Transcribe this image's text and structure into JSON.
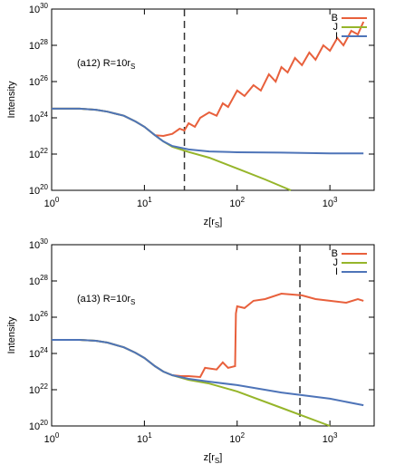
{
  "chart_data": [
    {
      "type": "line",
      "xscale": "log",
      "yscale": "log",
      "annotation": {
        "text": "(a12)  R=10r",
        "sub": "S"
      },
      "ylabel": "Intensity",
      "xlabel": {
        "text": "z[r",
        "sub": "S",
        "end": "]"
      },
      "xlim": [
        1,
        3000
      ],
      "ylim": [
        1e+20,
        1e+30
      ],
      "xticks": [
        {
          "value": 1,
          "label": "10",
          "exponent": "0"
        },
        {
          "value": 10,
          "label": "10",
          "exponent": "1"
        },
        {
          "value": 100,
          "label": "10",
          "exponent": "2"
        },
        {
          "value": 1000,
          "label": "10",
          "exponent": "3"
        }
      ],
      "yticks": [
        {
          "value": 1e+20,
          "label": "10",
          "exponent": "20"
        },
        {
          "value": 1e+22,
          "label": "10",
          "exponent": "22"
        },
        {
          "value": 1e+24,
          "label": "10",
          "exponent": "24"
        },
        {
          "value": 1e+26,
          "label": "10",
          "exponent": "26"
        },
        {
          "value": 1e+28,
          "label": "10",
          "exponent": "28"
        },
        {
          "value": 1e+30,
          "label": "10",
          "exponent": "30"
        }
      ],
      "vline": 27,
      "legend": "upper right",
      "series": [
        {
          "name": "B",
          "color": "#e8603c",
          "x": [
            1,
            2,
            3,
            4,
            6,
            8,
            10,
            13,
            16,
            20,
            24,
            27,
            30,
            35,
            40,
            50,
            60,
            70,
            80,
            100,
            120,
            150,
            180,
            220,
            260,
            300,
            350,
            420,
            500,
            600,
            700,
            850,
            1000,
            1200,
            1400,
            1700,
            2000,
            2300
          ],
          "values": [
            3.2e+24,
            3.2e+24,
            2.8e+24,
            2.2e+24,
            1.3e+24,
            6.3e+23,
            3.2e+23,
            1.1e+23,
            1e+23,
            1.3e+23,
            2.5e+23,
            2e+23,
            5e+23,
            3.2e+23,
            1e+24,
            2e+24,
            1.3e+24,
            6.3e+24,
            4e+24,
            3.2e+25,
            1.6e+25,
            6.3e+25,
            3.2e+25,
            2.5e+26,
            1e+26,
            6.3e+26,
            3.2e+26,
            2e+27,
            8e+26,
            4e+27,
            1.6e+27,
            1e+28,
            5e+27,
            2.5e+28,
            1e+28,
            6.3e+28,
            4e+28,
            2e+29
          ]
        },
        {
          "name": "J",
          "color": "#96b52a",
          "x": [
            1,
            2,
            3,
            4,
            6,
            8,
            10,
            13,
            16,
            20,
            30,
            50,
            100,
            200,
            380
          ],
          "values": [
            3.2e+24,
            3.2e+24,
            2.8e+24,
            2.2e+24,
            1.3e+24,
            6.3e+23,
            3.2e+23,
            1.1e+23,
            5e+22,
            2.5e+22,
            1.3e+22,
            6.3e+21,
            1.6e+21,
            4e+20,
            1e+20
          ]
        },
        {
          "name": "I",
          "color": "#4e74b8",
          "x": [
            1,
            2,
            3,
            4,
            6,
            8,
            10,
            13,
            16,
            20,
            30,
            50,
            100,
            300,
            1000,
            2300
          ],
          "values": [
            3.2e+24,
            3.2e+24,
            2.8e+24,
            2.2e+24,
            1.3e+24,
            6.3e+23,
            3.2e+23,
            1.1e+23,
            5e+22,
            2.8e+22,
            1.8e+22,
            1.4e+22,
            1.26e+22,
            1.2e+22,
            1.1e+22,
            1.1e+22
          ]
        }
      ]
    },
    {
      "type": "line",
      "xscale": "log",
      "yscale": "log",
      "annotation": {
        "text": "(a13)  R=10r",
        "sub": "S"
      },
      "ylabel": "Intensity",
      "xlabel": {
        "text": "z[r",
        "sub": "S",
        "end": "]"
      },
      "xlim": [
        1,
        3000
      ],
      "ylim": [
        1e+20,
        1e+30
      ],
      "xticks": [
        {
          "value": 1,
          "label": "10",
          "exponent": "0"
        },
        {
          "value": 10,
          "label": "10",
          "exponent": "1"
        },
        {
          "value": 100,
          "label": "10",
          "exponent": "2"
        },
        {
          "value": 1000,
          "label": "10",
          "exponent": "3"
        }
      ],
      "yticks": [
        {
          "value": 1e+20,
          "label": "10",
          "exponent": "20"
        },
        {
          "value": 1e+22,
          "label": "10",
          "exponent": "22"
        },
        {
          "value": 1e+24,
          "label": "10",
          "exponent": "24"
        },
        {
          "value": 1e+26,
          "label": "10",
          "exponent": "26"
        },
        {
          "value": 1e+28,
          "label": "10",
          "exponent": "28"
        },
        {
          "value": 1e+30,
          "label": "10",
          "exponent": "30"
        }
      ],
      "vline": 475,
      "legend": "upper right",
      "series": [
        {
          "name": "B",
          "color": "#e8603c",
          "x": [
            1,
            2,
            3,
            4,
            6,
            8,
            10,
            13,
            16,
            20,
            25,
            30,
            40,
            45,
            60,
            70,
            80,
            95,
            97,
            100,
            120,
            150,
            200,
            300,
            500,
            700,
            1000,
            1500,
            2000,
            2300
          ],
          "values": [
            5.6e+24,
            5.6e+24,
            5e+24,
            4e+24,
            2.2e+24,
            1.1e+24,
            5.6e+23,
            2e+23,
            1e+23,
            6.3e+22,
            5.6e+22,
            5.6e+22,
            5e+22,
            1.6e+23,
            1.3e+23,
            3.2e+23,
            1.6e+23,
            2e+23,
            1.6e+26,
            4e+26,
            3.2e+26,
            8e+26,
            1e+27,
            2e+27,
            1.6e+27,
            1e+27,
            8e+26,
            6.3e+26,
            1e+27,
            8e+26
          ]
        },
        {
          "name": "J",
          "color": "#96b52a",
          "x": [
            1,
            2,
            3,
            4,
            6,
            8,
            10,
            13,
            16,
            20,
            30,
            50,
            100,
            300,
            1000
          ],
          "values": [
            5.6e+24,
            5.6e+24,
            5e+24,
            4e+24,
            2.2e+24,
            1.1e+24,
            5.6e+23,
            2e+23,
            1e+23,
            6.3e+22,
            3.5e+22,
            2.2e+22,
            8e+21,
            1e+21,
            1e+20
          ]
        },
        {
          "name": "I",
          "color": "#4e74b8",
          "x": [
            1,
            2,
            3,
            4,
            6,
            8,
            10,
            13,
            16,
            20,
            30,
            50,
            100,
            300,
            1000,
            2300
          ],
          "values": [
            5.6e+24,
            5.6e+24,
            5e+24,
            4e+24,
            2.2e+24,
            1.1e+24,
            5.6e+23,
            2e+23,
            1e+23,
            6.3e+22,
            4e+22,
            2.8e+22,
            1.8e+22,
            7e+21,
            3.2e+21,
            1.4e+21
          ]
        }
      ]
    }
  ]
}
